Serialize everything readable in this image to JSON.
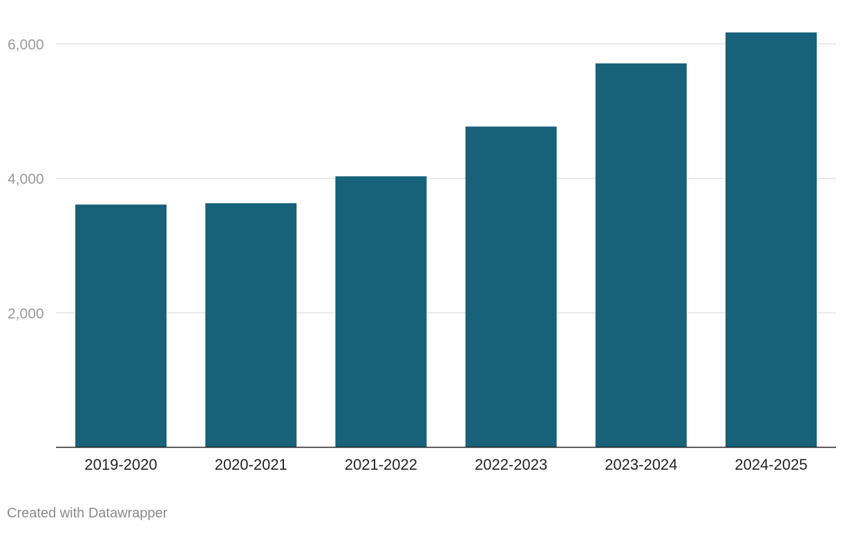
{
  "chart_data": {
    "type": "bar",
    "categories": [
      "2019-2020",
      "2020-2021",
      "2021-2022",
      "2022-2023",
      "2023-2024",
      "2024-2025"
    ],
    "values": [
      3610,
      3630,
      4030,
      4770,
      5710,
      6170
    ],
    "title": "",
    "xlabel": "",
    "ylabel": "",
    "ylim": [
      0,
      6000
    ],
    "yticks": [
      2000,
      4000,
      6000
    ],
    "ytick_labels": [
      "2,000",
      "4,000",
      "6,000"
    ],
    "grid": true,
    "bar_color": "#176179"
  },
  "footer": {
    "credit": "Created with Datawrapper"
  }
}
